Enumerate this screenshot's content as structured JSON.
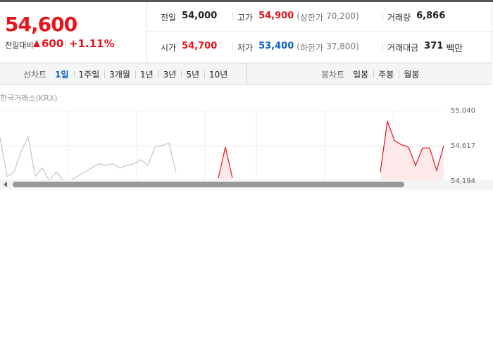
{
  "summary": {
    "price": "54,600",
    "change_label": "전일대비",
    "change": "600",
    "change_rate": "+1.11%"
  },
  "stats": [
    [
      {
        "label": "전일",
        "value": "54,000"
      },
      {
        "label": "고가",
        "value": "54,900",
        "limit_label": "상한가",
        "limit_value": "70,200"
      },
      {
        "label": "거래량",
        "value": "6,866"
      }
    ],
    [
      {
        "label": "시가",
        "value": "54,700"
      },
      {
        "label": "저가",
        "value": "53,400",
        "limit_label": "하한가",
        "limit_value": "37,800"
      },
      {
        "label": "거래대금",
        "value": "371",
        "unit": "백만"
      }
    ]
  ],
  "tabs": {
    "line_label": "선차트",
    "line_periods": [
      "1일",
      "1주일",
      "3개월",
      "1년",
      "3년",
      "5년",
      "10년"
    ],
    "selected": "1일",
    "candle_label": "봉차트",
    "candle_periods": [
      "일봉",
      "주봉",
      "월봉"
    ]
  },
  "source": "한국거래소(KRX)",
  "chart_data": {
    "type": "line",
    "categories": [
      null,
      null,
      null,
      null,
      null,
      null,
      null,
      null,
      null,
      null,
      null,
      null,
      null,
      null,
      null,
      null,
      null,
      null,
      null,
      null,
      null,
      null,
      null,
      null,
      null,
      null,
      null,
      null,
      null,
      null,
      null,
      null,
      null,
      null,
      null,
      null,
      null,
      null,
      null,
      null,
      null,
      null,
      null,
      null,
      null,
      null,
      null,
      null,
      null,
      null,
      null,
      null,
      null,
      null,
      null,
      null,
      null,
      null,
      null,
      null,
      null,
      null,
      null,
      null
    ],
    "series": [
      {
        "color": "#c4c4c4",
        "values": [
          54718,
          54250,
          54300,
          54550,
          54720,
          54250,
          54350,
          54200,
          54300,
          54200,
          54200,
          54250,
          54300,
          54350,
          54400,
          54380,
          54400,
          54350,
          54380,
          54400,
          54450,
          54380,
          54600,
          54620,
          54650,
          54300,
          null,
          null,
          null,
          null,
          null,
          null,
          null,
          null,
          null,
          null,
          null,
          null,
          null,
          null,
          null,
          null,
          null,
          null,
          null,
          null,
          null,
          null,
          null,
          null,
          null,
          null,
          null,
          null,
          null,
          null,
          null,
          null,
          null,
          null,
          null,
          null,
          null,
          null
        ]
      },
      {
        "color": "#e8141b",
        "values": [
          null,
          null,
          null,
          null,
          null,
          null,
          null,
          null,
          null,
          null,
          null,
          null,
          null,
          null,
          null,
          null,
          null,
          null,
          null,
          null,
          null,
          null,
          null,
          null,
          null,
          null,
          null,
          null,
          null,
          null,
          null,
          54230,
          54600,
          54230,
          null,
          null,
          null,
          null,
          null,
          null,
          null,
          null,
          null,
          null,
          null,
          null,
          null,
          null,
          null,
          null,
          null,
          null,
          null,
          null,
          54300,
          54913,
          54680,
          54630,
          54600,
          54380,
          54590,
          54590,
          54320,
          54617
        ]
      }
    ],
    "ylim": [
      54194,
      55040
    ],
    "yticks": [
      {
        "value": 55040,
        "label": "55,040"
      },
      {
        "value": 54617,
        "label": "54,617"
      },
      {
        "value": 54194,
        "label": "54,194"
      }
    ],
    "grid": true
  }
}
